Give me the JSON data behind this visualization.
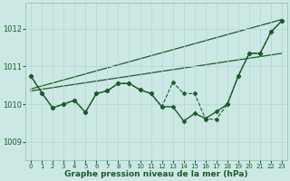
{
  "title": "Graphe pression niveau de la mer (hPa)",
  "bg_color": "#cce8e5",
  "grid_color": "#b8d8d4",
  "line_color": "#1a5c2a",
  "xlim": [
    -0.5,
    23.5
  ],
  "ylim": [
    1008.5,
    1012.7
  ],
  "yticks": [
    1009,
    1010,
    1011,
    1012
  ],
  "xticks": [
    0,
    1,
    2,
    3,
    4,
    5,
    6,
    7,
    8,
    9,
    10,
    11,
    12,
    13,
    14,
    15,
    16,
    17,
    18,
    19,
    20,
    21,
    22,
    23
  ],
  "series": [
    {
      "x": [
        0,
        1,
        2,
        3,
        4,
        5,
        6,
        7,
        8,
        9,
        10,
        11,
        12,
        13,
        14,
        15,
        16,
        17,
        18,
        19,
        20,
        21,
        22,
        23
      ],
      "y": [
        1010.75,
        1010.3,
        1009.9,
        1010.0,
        1010.1,
        1009.78,
        1010.28,
        1010.35,
        1010.55,
        1010.55,
        1010.38,
        1010.28,
        1009.93,
        1009.93,
        1009.55,
        1009.75,
        1009.62,
        1009.8,
        1010.0,
        1010.75,
        1011.35,
        1011.35,
        1011.92,
        1012.22
      ],
      "style": "-",
      "marker": "D",
      "markersize": 2.5,
      "linewidth": 1.0
    },
    {
      "x": [
        0,
        1,
        2,
        3,
        4,
        5,
        6,
        7,
        8,
        9,
        10,
        11,
        12,
        13,
        14,
        15,
        16,
        17,
        18,
        19,
        20,
        21,
        22,
        23
      ],
      "y": [
        1010.75,
        1010.3,
        1009.9,
        1010.0,
        1010.1,
        1009.78,
        1010.28,
        1010.35,
        1010.55,
        1010.55,
        1010.38,
        1010.28,
        1009.93,
        1010.58,
        1010.28,
        1010.28,
        1009.6,
        1009.6,
        1010.0,
        1010.75,
        1011.35,
        1011.35,
        1011.92,
        1012.22
      ],
      "style": "--",
      "marker": "P",
      "markersize": 3.0,
      "linewidth": 0.8
    },
    {
      "x": [
        0,
        23
      ],
      "y": [
        1010.4,
        1012.25
      ],
      "style": "-",
      "marker": null,
      "linewidth": 0.9
    },
    {
      "x": [
        0,
        23
      ],
      "y": [
        1010.35,
        1011.35
      ],
      "style": "-",
      "marker": null,
      "linewidth": 0.9
    }
  ]
}
